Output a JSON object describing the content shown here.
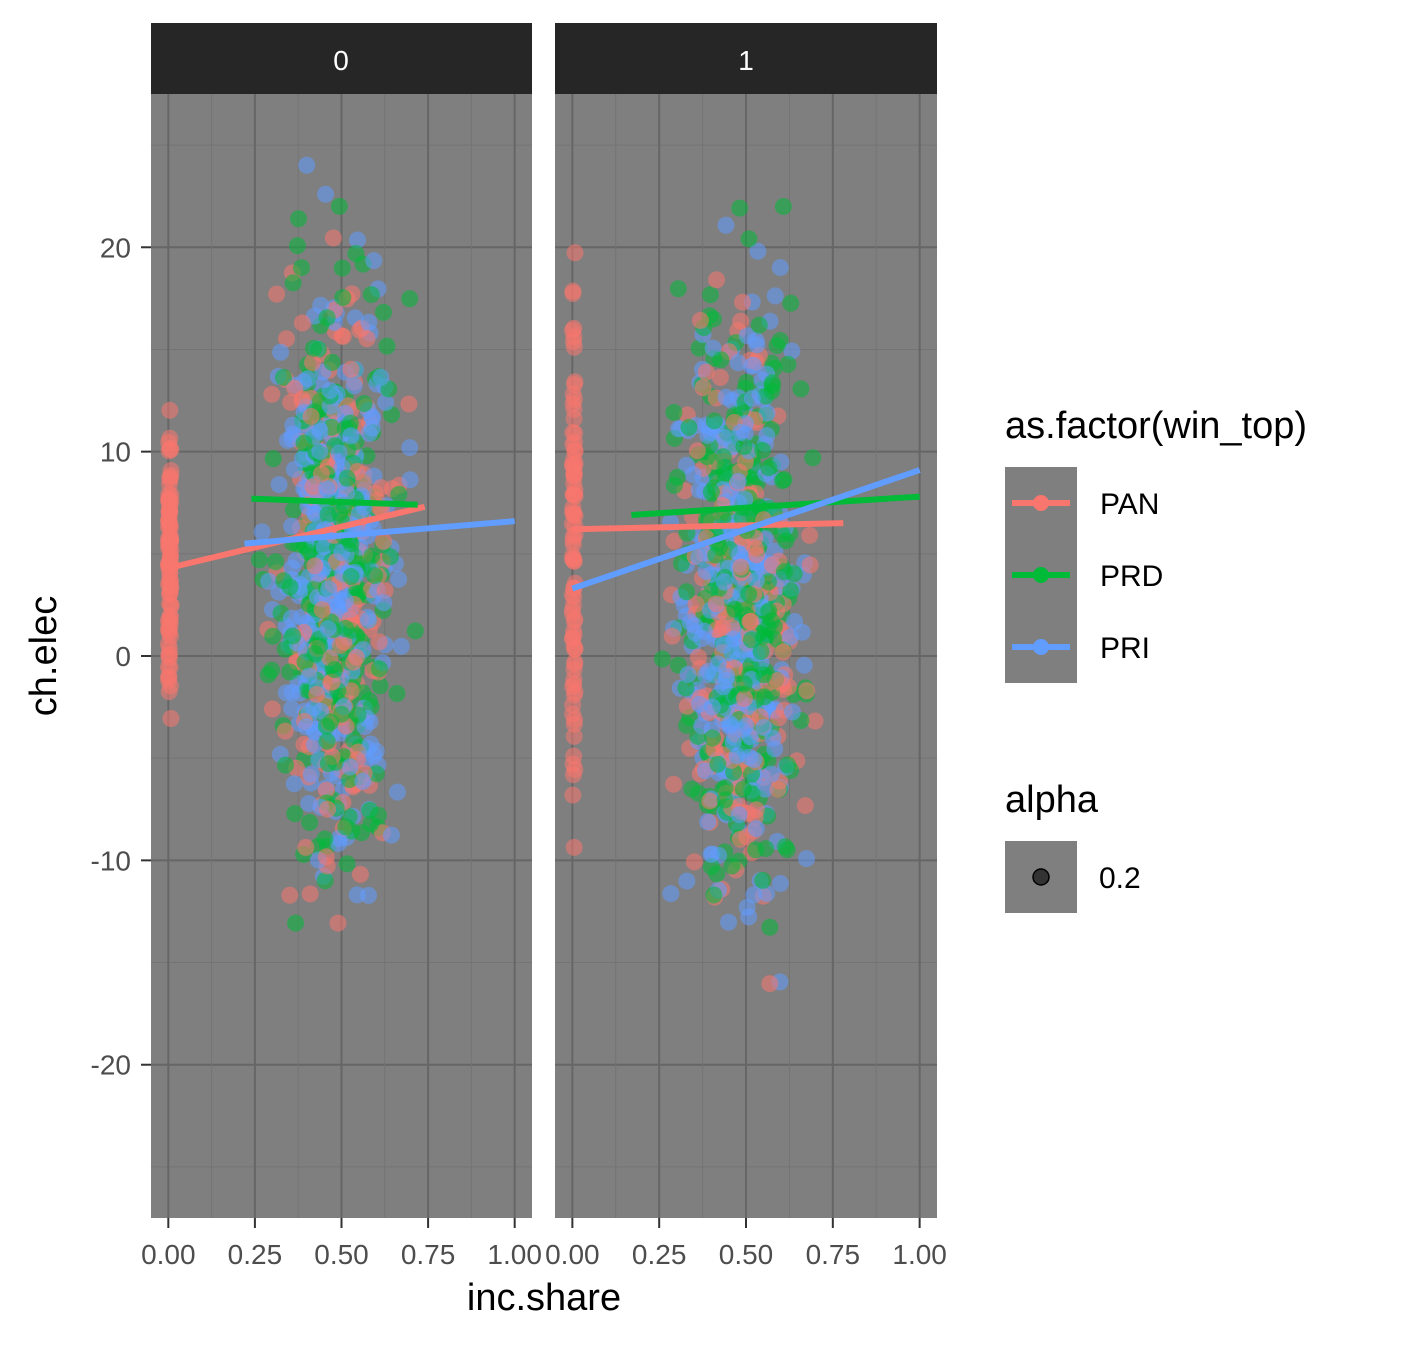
{
  "chart_data": {
    "type": "scatter",
    "xlabel": "inc.share",
    "ylabel": "ch.elec",
    "xlim": [
      -0.05,
      1.05
    ],
    "ylim": [
      -27.5,
      27.5
    ],
    "x_ticks": [
      0.0,
      0.25,
      0.5,
      0.75,
      1.0
    ],
    "x_tick_labels": [
      "0.00",
      "0.25",
      "0.50",
      "0.75",
      "1.00"
    ],
    "y_ticks": [
      -20,
      -10,
      0,
      10,
      20
    ],
    "y_tick_labels": [
      "-20",
      "-10",
      "0",
      "10",
      "20"
    ],
    "grid": true,
    "background": "#7f7f7f",
    "point_alpha": 0.2,
    "facets": [
      {
        "label": "0",
        "fits": [
          {
            "series": "PAN",
            "x": [
              0.0,
              0.74
            ],
            "y": [
              4.3,
              7.3
            ]
          },
          {
            "series": "PRD",
            "x": [
              0.24,
              0.72
            ],
            "y": [
              7.7,
              7.4
            ]
          },
          {
            "series": "PRI",
            "x": [
              0.22,
              1.0
            ],
            "y": [
              5.5,
              6.6
            ]
          }
        ]
      },
      {
        "label": "1",
        "fits": [
          {
            "series": "PAN",
            "x": [
              0.0,
              0.78
            ],
            "y": [
              6.2,
              6.5
            ]
          },
          {
            "series": "PRD",
            "x": [
              0.17,
              1.0
            ],
            "y": [
              6.9,
              7.8
            ]
          },
          {
            "series": "PRI",
            "x": [
              0.0,
              1.0
            ],
            "y": [
              3.3,
              9.1
            ]
          }
        ]
      }
    ],
    "series": [
      {
        "name": "PAN",
        "color": "#f8766d"
      },
      {
        "name": "PRD",
        "color": "#00ba38"
      },
      {
        "name": "PRI",
        "color": "#619cff"
      }
    ],
    "legend": {
      "placement": "right",
      "color_title": "as.factor(win_top)",
      "alpha_title": "alpha",
      "alpha_entries": [
        "0.2"
      ]
    }
  }
}
